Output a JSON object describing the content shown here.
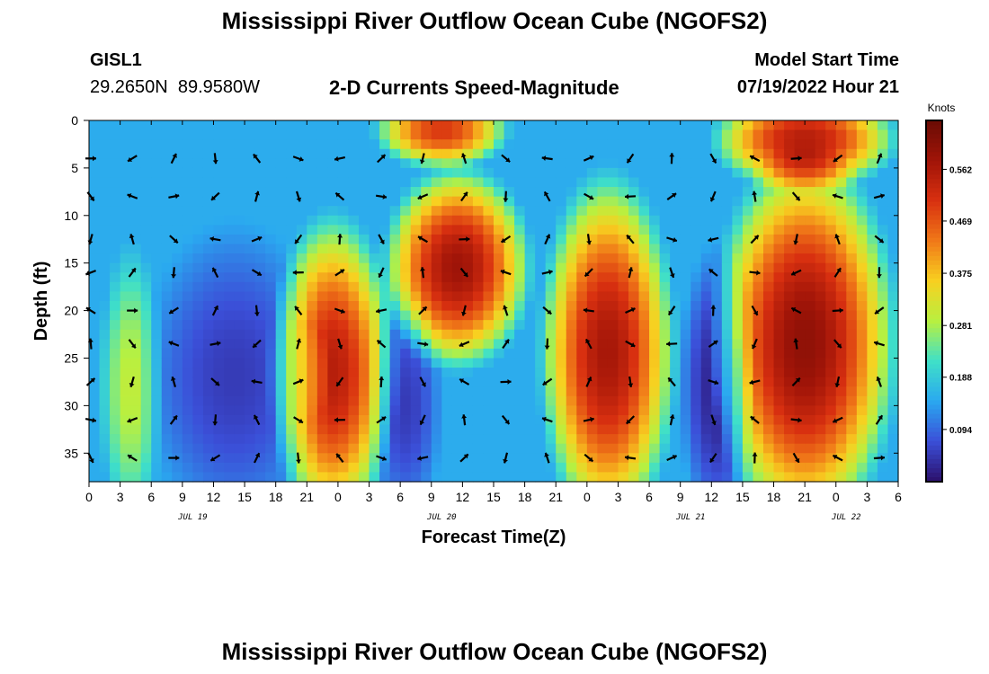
{
  "header": {
    "title": "Mississippi River Outflow Ocean Cube (NGOFS2)",
    "station_id": "GISL1",
    "station_coords": "29.2650N  89.9580W",
    "subtitle": "2-D Currents Speed-Magnitude",
    "model_start_label": "Model Start Time",
    "model_start_value": "07/19/2022 Hour 21"
  },
  "footer": {
    "title": "Mississippi River Outflow Ocean Cube (NGOFS2)"
  },
  "chart_data": {
    "type": "heatmap",
    "title": "2-D Currents Speed-Magnitude",
    "xlabel": "Forecast Time(Z)",
    "ylabel": "Depth (ft)",
    "x_tick_labels": [
      "0",
      "3",
      "6",
      "9",
      "12",
      "15",
      "18",
      "21",
      "0",
      "3",
      "6",
      "9",
      "12",
      "15",
      "18",
      "21",
      "0",
      "3",
      "6",
      "9",
      "12",
      "15",
      "18",
      "21",
      "0",
      "3",
      "6"
    ],
    "x_hours_range": [
      0,
      78
    ],
    "date_labels": [
      {
        "label": "JUL 19",
        "hour": 10
      },
      {
        "label": "JUL 20",
        "hour": 34
      },
      {
        "label": "JUL 21",
        "hour": 58
      },
      {
        "label": "JUL 22",
        "hour": 73
      }
    ],
    "ylim": [
      0,
      38
    ],
    "y_ticks": [
      0,
      5,
      10,
      15,
      20,
      25,
      30,
      35
    ],
    "y_inverted": true,
    "colorbar": {
      "units": "Knots",
      "ticks": [
        "0.094",
        "0.188",
        "0.281",
        "0.375",
        "0.469",
        "0.562"
      ],
      "range": [
        0,
        0.65
      ],
      "colors": [
        "#2b0f6b",
        "#3b4fd8",
        "#2aa8f0",
        "#3fe0c8",
        "#b8f040",
        "#f8d020",
        "#f07818",
        "#d83010",
        "#a01408",
        "#6a0c04"
      ]
    },
    "speed_cells": [
      {
        "x0": 0,
        "x1": 8,
        "y0": 0,
        "y1": 38,
        "value": 0.15
      },
      {
        "x0": 3,
        "x1": 5,
        "y0": 18,
        "y1": 38,
        "value": 0.3
      },
      {
        "x0": 8,
        "x1": 20,
        "y0": 16,
        "y1": 38,
        "value": 0.05
      },
      {
        "x0": 20,
        "x1": 27,
        "y0": 15,
        "y1": 38,
        "value": 0.55
      },
      {
        "x0": 31,
        "x1": 40,
        "y0": 9,
        "y1": 22,
        "value": 0.58
      },
      {
        "x0": 29,
        "x1": 32,
        "y0": 22,
        "y1": 38,
        "value": 0.05
      },
      {
        "x0": 46,
        "x1": 54,
        "y0": 11,
        "y1": 38,
        "value": 0.57
      },
      {
        "x0": 59,
        "x1": 62,
        "y0": 18,
        "y1": 38,
        "value": 0.02
      },
      {
        "x0": 63,
        "x1": 75,
        "y0": 9,
        "y1": 38,
        "value": 0.6
      },
      {
        "x0": 63,
        "x1": 75,
        "y0": 0,
        "y1": 4,
        "value": 0.55
      },
      {
        "x0": 30,
        "x1": 38,
        "y0": 0,
        "y1": 2,
        "value": 0.5
      }
    ]
  }
}
